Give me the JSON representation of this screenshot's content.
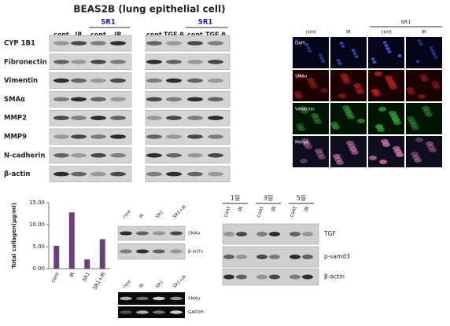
{
  "title": "BEAS2B  (lung epithelial cell)",
  "blot_panels": [
    {
      "group_label": "SR1",
      "columns": [
        "cont",
        "IR",
        "cont",
        "IR"
      ]
    },
    {
      "group_label": "SR1",
      "columns": [
        "cont",
        "TGF β",
        "cont",
        "TGF β"
      ]
    }
  ],
  "blot_rows": [
    "CYP 1B1",
    "Fibronectin",
    "Vimentin",
    "SMAα",
    "MMP2",
    "MMP9",
    "N-cadherin",
    "β-actin"
  ],
  "if_panel": {
    "group_label": "SR1",
    "columns": [
      "cont",
      "IR",
      "cont",
      "IR"
    ],
    "rows": [
      "DAPI",
      "SMAα",
      "Vimentin",
      "Merge"
    ]
  },
  "chart_data": {
    "type": "bar",
    "y_label": "Total collagen(μg/ml)",
    "categories": [
      "cont",
      "IR",
      "SR1",
      "SR1+IR"
    ],
    "values": [
      5.2,
      12.8,
      2.1,
      6.7
    ],
    "color": "#6a3f7e",
    "ylim": [
      0,
      15
    ],
    "yticks": [
      {
        "value": 0,
        "label": "0.00"
      },
      {
        "value": 5,
        "label": "5.00"
      },
      {
        "value": 10,
        "label": "10.00"
      },
      {
        "value": 15,
        "label": "15.00"
      }
    ]
  },
  "small_blot": {
    "columns": [
      "cont",
      "IR",
      "SR1",
      "SR1+IR"
    ],
    "rows": [
      "SMAα",
      "β-actin"
    ]
  },
  "gel": {
    "columns": [
      "cont",
      "IR",
      "SR1",
      "SR1+IR"
    ],
    "rows": [
      "SMAα",
      "GAPDH"
    ]
  },
  "time_blot": {
    "groups": [
      "1일",
      "3일",
      "5일"
    ],
    "columns": [
      "cont",
      "IR"
    ],
    "rows": [
      "TGF",
      "p-samd3",
      "β-actin"
    ]
  }
}
